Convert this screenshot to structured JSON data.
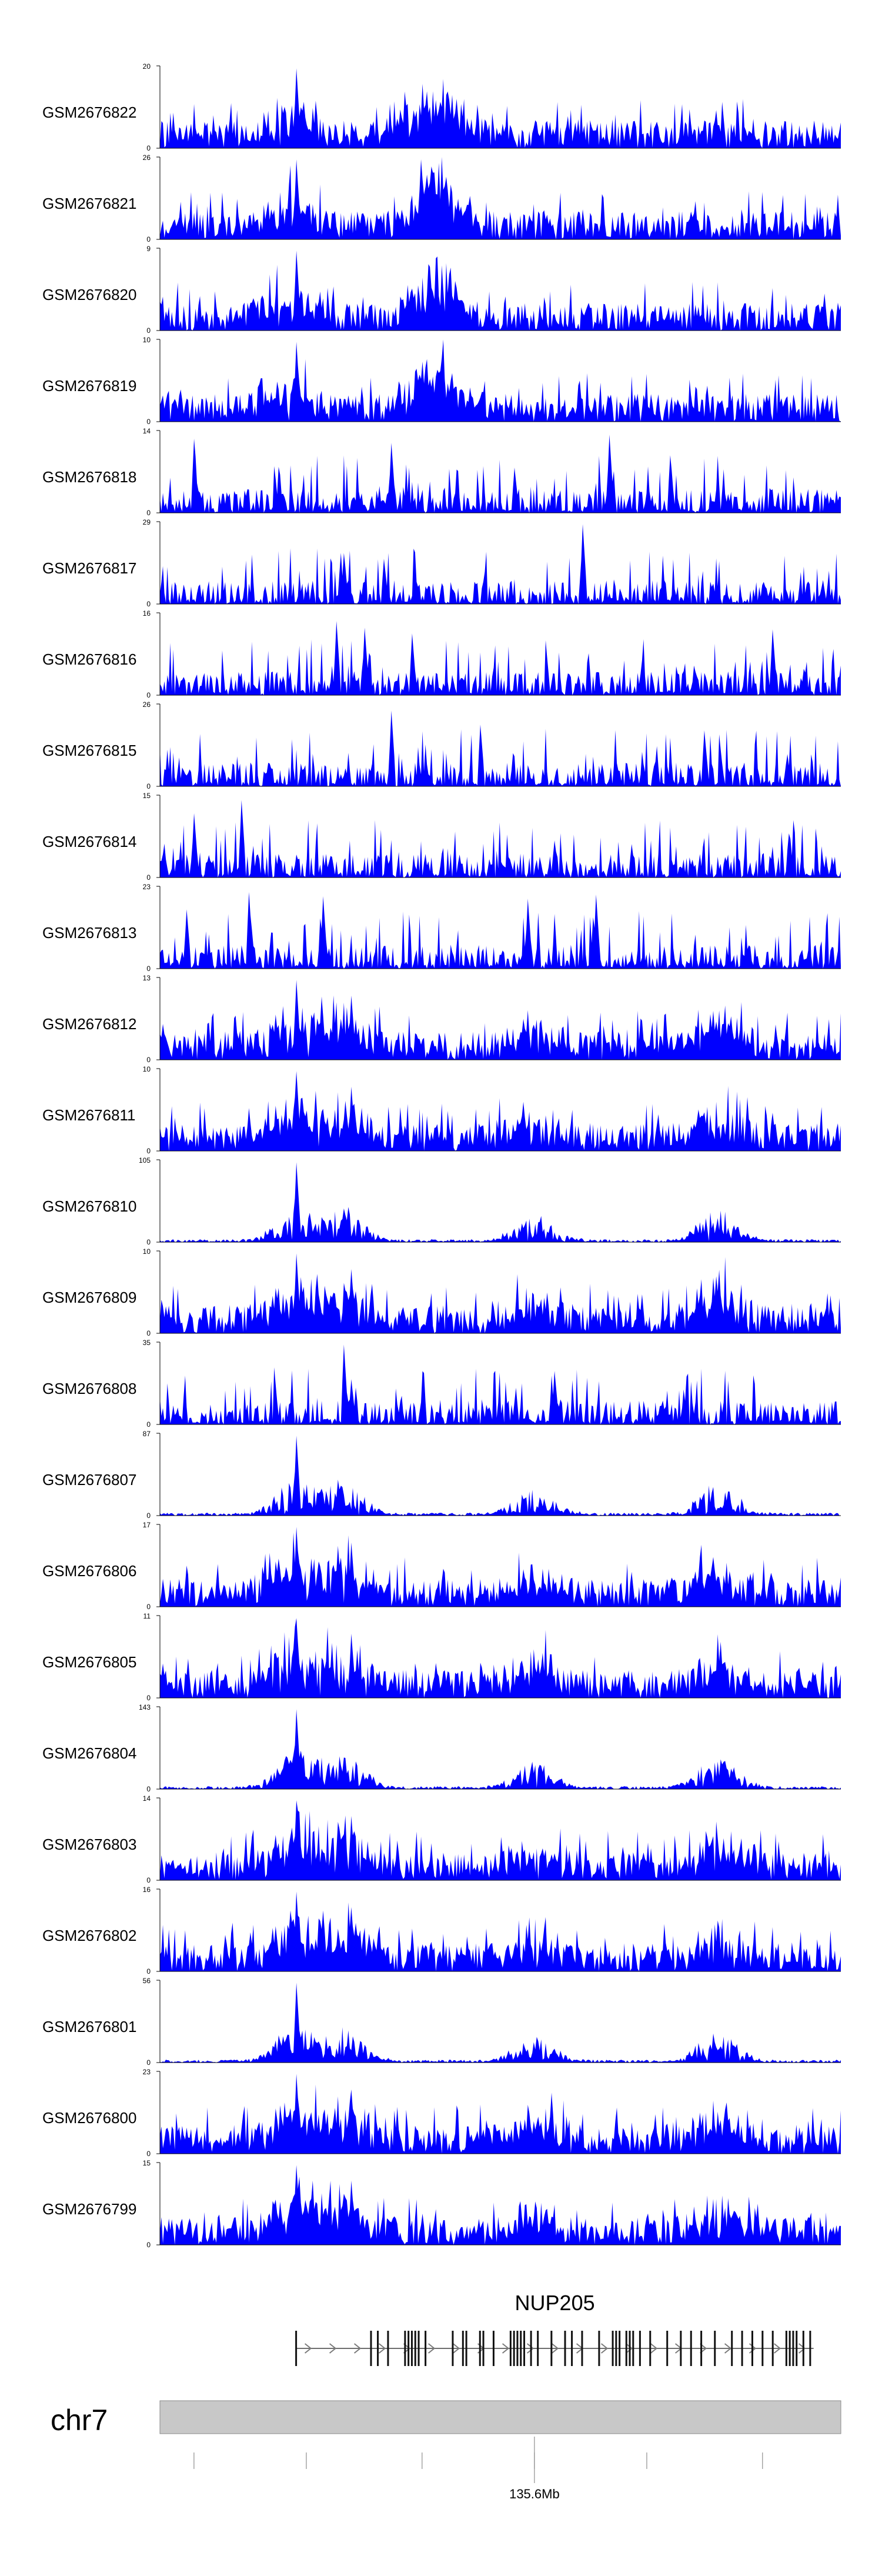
{
  "chart_data": {
    "type": "area",
    "title": "",
    "xlabel": "",
    "ylabel": "",
    "signal_color": "#0000ff",
    "tracks": [
      {
        "name": "GSM2676822",
        "ymax": "20",
        "ymin": "0",
        "style": "dense",
        "peaks": [
          [
            0.2,
            0.97
          ],
          [
            0.405,
            0.55
          ],
          [
            0.4,
            0.28
          ]
        ],
        "bumps": [
          [
            0.19,
            0.36
          ],
          [
            0.405,
            0.34
          ],
          [
            0.41,
            0.26
          ],
          [
            0.4,
            0.27
          ]
        ]
      },
      {
        "name": "GSM2676821",
        "ymax": "26",
        "ymin": "0",
        "style": "dense",
        "peaks": [
          [
            0.2,
            0.97
          ],
          [
            0.405,
            0.55
          ],
          [
            0.4,
            0.28
          ],
          [
            0.97,
            0.32
          ]
        ],
        "bumps": [
          [
            0.19,
            0.36
          ],
          [
            0.405,
            0.34
          ],
          [
            0.41,
            0.26
          ],
          [
            0.4,
            0.27
          ]
        ]
      },
      {
        "name": "GSM2676820",
        "ymax": "9",
        "ymin": "0",
        "style": "dense",
        "peaks": [
          [
            0.2,
            0.97
          ],
          [
            0.405,
            0.55
          ],
          [
            0.4,
            0.28
          ]
        ],
        "bumps": [
          [
            0.19,
            0.36
          ],
          [
            0.405,
            0.34
          ],
          [
            0.41,
            0.26
          ],
          [
            0.4,
            0.27
          ]
        ]
      },
      {
        "name": "GSM2676819",
        "ymax": "10",
        "ymin": "0",
        "style": "dense",
        "peaks": [
          [
            0.2,
            0.97
          ],
          [
            0.405,
            0.55
          ],
          [
            0.4,
            0.28
          ]
        ],
        "bumps": [
          [
            0.19,
            0.36
          ],
          [
            0.405,
            0.34
          ],
          [
            0.41,
            0.26
          ],
          [
            0.4,
            0.27
          ]
        ]
      },
      {
        "name": "GSM2676818",
        "ymax": "14",
        "ymin": "0",
        "style": "sparse",
        "peaks": [
          [
            0.05,
            0.9
          ],
          [
            0.34,
            0.85
          ],
          [
            0.52,
            0.55
          ],
          [
            0.66,
            0.95
          ],
          [
            0.75,
            0.7
          ]
        ],
        "bumps": []
      },
      {
        "name": "GSM2676817",
        "ymax": "29",
        "ymin": "0",
        "style": "sparse",
        "peaks": [
          [
            0.62,
            0.97
          ],
          [
            0.27,
            0.62
          ],
          [
            0.33,
            0.55
          ]
        ],
        "bumps": []
      },
      {
        "name": "GSM2676816",
        "ymax": "16",
        "ymin": "0",
        "style": "sparse",
        "peaks": [
          [
            0.26,
            0.9
          ],
          [
            0.3,
            0.82
          ],
          [
            0.37,
            0.75
          ],
          [
            0.9,
            0.8
          ]
        ],
        "bumps": []
      },
      {
        "name": "GSM2676815",
        "ymax": "26",
        "ymin": "0",
        "style": "sparse",
        "peaks": [
          [
            0.34,
            0.92
          ],
          [
            0.47,
            0.75
          ],
          [
            0.8,
            0.68
          ]
        ],
        "bumps": []
      },
      {
        "name": "GSM2676814",
        "ymax": "15",
        "ymin": "0",
        "style": "sparse",
        "peaks": [
          [
            0.12,
            0.94
          ],
          [
            0.05,
            0.78
          ],
          [
            0.58,
            0.45
          ]
        ],
        "bumps": []
      },
      {
        "name": "GSM2676813",
        "ymax": "23",
        "ymin": "0",
        "style": "sparse",
        "peaks": [
          [
            0.13,
            0.93
          ],
          [
            0.04,
            0.72
          ],
          [
            0.24,
            0.88
          ],
          [
            0.54,
            0.85
          ],
          [
            0.64,
            0.9
          ]
        ],
        "bumps": []
      },
      {
        "name": "GSM2676812",
        "ymax": "13",
        "ymin": "0",
        "style": "dense",
        "peaks": [
          [
            0.2,
            0.97
          ],
          [
            0.28,
            0.78
          ],
          [
            0.17,
            0.55
          ]
        ],
        "bumps": [
          [
            0.2,
            0.45
          ],
          [
            0.27,
            0.4
          ],
          [
            0.55,
            0.32
          ],
          [
            0.82,
            0.38
          ]
        ]
      },
      {
        "name": "GSM2676811",
        "ymax": "10",
        "ymin": "0",
        "style": "dense",
        "peaks": [
          [
            0.2,
            0.97
          ],
          [
            0.28,
            0.78
          ],
          [
            0.17,
            0.55
          ]
        ],
        "bumps": [
          [
            0.2,
            0.45
          ],
          [
            0.27,
            0.4
          ],
          [
            0.55,
            0.32
          ],
          [
            0.82,
            0.38
          ]
        ]
      },
      {
        "name": "GSM2676810",
        "ymax": "105",
        "ymin": "0",
        "style": "spike",
        "peaks": [
          [
            0.2,
            0.97
          ]
        ],
        "bumps": [
          [
            0.2,
            0.45
          ],
          [
            0.27,
            0.4
          ],
          [
            0.55,
            0.32
          ],
          [
            0.82,
            0.38
          ]
        ]
      },
      {
        "name": "GSM2676809",
        "ymax": "10",
        "ymin": "0",
        "style": "dense",
        "peaks": [
          [
            0.2,
            0.97
          ],
          [
            0.28,
            0.78
          ],
          [
            0.17,
            0.55
          ]
        ],
        "bumps": [
          [
            0.2,
            0.45
          ],
          [
            0.27,
            0.4
          ],
          [
            0.55,
            0.32
          ],
          [
            0.82,
            0.38
          ]
        ]
      },
      {
        "name": "GSM2676808",
        "ymax": "35",
        "ymin": "0",
        "style": "sparse",
        "peaks": [
          [
            0.27,
            0.97
          ],
          [
            0.58,
            0.65
          ],
          [
            0.28,
            0.55
          ]
        ],
        "bumps": []
      },
      {
        "name": "GSM2676807",
        "ymax": "87",
        "ymin": "0",
        "style": "spike",
        "peaks": [
          [
            0.2,
            0.97
          ]
        ],
        "bumps": [
          [
            0.2,
            0.45
          ],
          [
            0.27,
            0.4
          ],
          [
            0.55,
            0.32
          ],
          [
            0.82,
            0.38
          ]
        ]
      },
      {
        "name": "GSM2676806",
        "ymax": "17",
        "ymin": "0",
        "style": "dense",
        "peaks": [
          [
            0.2,
            0.97
          ],
          [
            0.28,
            0.78
          ],
          [
            0.17,
            0.55
          ]
        ],
        "bumps": [
          [
            0.2,
            0.45
          ],
          [
            0.27,
            0.4
          ],
          [
            0.55,
            0.32
          ],
          [
            0.82,
            0.38
          ]
        ]
      },
      {
        "name": "GSM2676805",
        "ymax": "11",
        "ymin": "0",
        "style": "dense",
        "peaks": [
          [
            0.2,
            0.97
          ],
          [
            0.28,
            0.78
          ],
          [
            0.17,
            0.55
          ]
        ],
        "bumps": [
          [
            0.2,
            0.45
          ],
          [
            0.27,
            0.4
          ],
          [
            0.55,
            0.32
          ],
          [
            0.82,
            0.38
          ]
        ]
      },
      {
        "name": "GSM2676804",
        "ymax": "143",
        "ymin": "0",
        "style": "spike",
        "peaks": [
          [
            0.2,
            0.97
          ]
        ],
        "bumps": [
          [
            0.2,
            0.45
          ],
          [
            0.27,
            0.4
          ],
          [
            0.55,
            0.32
          ],
          [
            0.82,
            0.38
          ]
        ]
      },
      {
        "name": "GSM2676803",
        "ymax": "14",
        "ymin": "0",
        "style": "dense",
        "peaks": [
          [
            0.2,
            0.97
          ],
          [
            0.28,
            0.78
          ],
          [
            0.17,
            0.55
          ]
        ],
        "bumps": [
          [
            0.2,
            0.45
          ],
          [
            0.27,
            0.4
          ],
          [
            0.55,
            0.32
          ],
          [
            0.82,
            0.38
          ]
        ]
      },
      {
        "name": "GSM2676802",
        "ymax": "16",
        "ymin": "0",
        "style": "dense",
        "peaks": [
          [
            0.2,
            0.97
          ],
          [
            0.28,
            0.78
          ],
          [
            0.17,
            0.55
          ]
        ],
        "bumps": [
          [
            0.2,
            0.45
          ],
          [
            0.27,
            0.4
          ],
          [
            0.55,
            0.32
          ],
          [
            0.82,
            0.38
          ]
        ]
      },
      {
        "name": "GSM2676801",
        "ymax": "56",
        "ymin": "0",
        "style": "spike",
        "peaks": [
          [
            0.2,
            0.97
          ]
        ],
        "bumps": [
          [
            0.2,
            0.45
          ],
          [
            0.27,
            0.4
          ],
          [
            0.55,
            0.32
          ],
          [
            0.82,
            0.38
          ]
        ]
      },
      {
        "name": "GSM2676800",
        "ymax": "23",
        "ymin": "0",
        "style": "dense",
        "peaks": [
          [
            0.2,
            0.97
          ],
          [
            0.28,
            0.78
          ],
          [
            0.17,
            0.55
          ]
        ],
        "bumps": [
          [
            0.2,
            0.45
          ],
          [
            0.27,
            0.4
          ],
          [
            0.55,
            0.32
          ],
          [
            0.82,
            0.38
          ]
        ]
      },
      {
        "name": "GSM2676799",
        "ymax": "15",
        "ymin": "0",
        "style": "dense",
        "peaks": [
          [
            0.2,
            0.97
          ],
          [
            0.28,
            0.78
          ],
          [
            0.17,
            0.55
          ]
        ],
        "bumps": [
          [
            0.2,
            0.45
          ],
          [
            0.27,
            0.4
          ],
          [
            0.55,
            0.32
          ],
          [
            0.82,
            0.38
          ]
        ]
      }
    ],
    "gene": {
      "name": "NUP205",
      "strand": "+",
      "start": 0.2,
      "end": 0.96,
      "exons": [
        0.2,
        0.31,
        0.32,
        0.335,
        0.36,
        0.365,
        0.37,
        0.375,
        0.38,
        0.39,
        0.43,
        0.445,
        0.45,
        0.47,
        0.475,
        0.49,
        0.515,
        0.52,
        0.525,
        0.53,
        0.535,
        0.545,
        0.555,
        0.575,
        0.595,
        0.605,
        0.62,
        0.645,
        0.665,
        0.67,
        0.675,
        0.685,
        0.69,
        0.695,
        0.705,
        0.72,
        0.745,
        0.765,
        0.78,
        0.795,
        0.815,
        0.84,
        0.855,
        0.87,
        0.885,
        0.9,
        0.92,
        0.925,
        0.93,
        0.935,
        0.945,
        0.955
      ]
    },
    "ideogram": {
      "chromosome": "chr7",
      "color": "#c8c8c8",
      "ticks": [
        0.05,
        0.215,
        0.385,
        0.55,
        0.715,
        0.885
      ],
      "major_tick": 0.55,
      "major_tick_label": "135.6Mb"
    }
  }
}
